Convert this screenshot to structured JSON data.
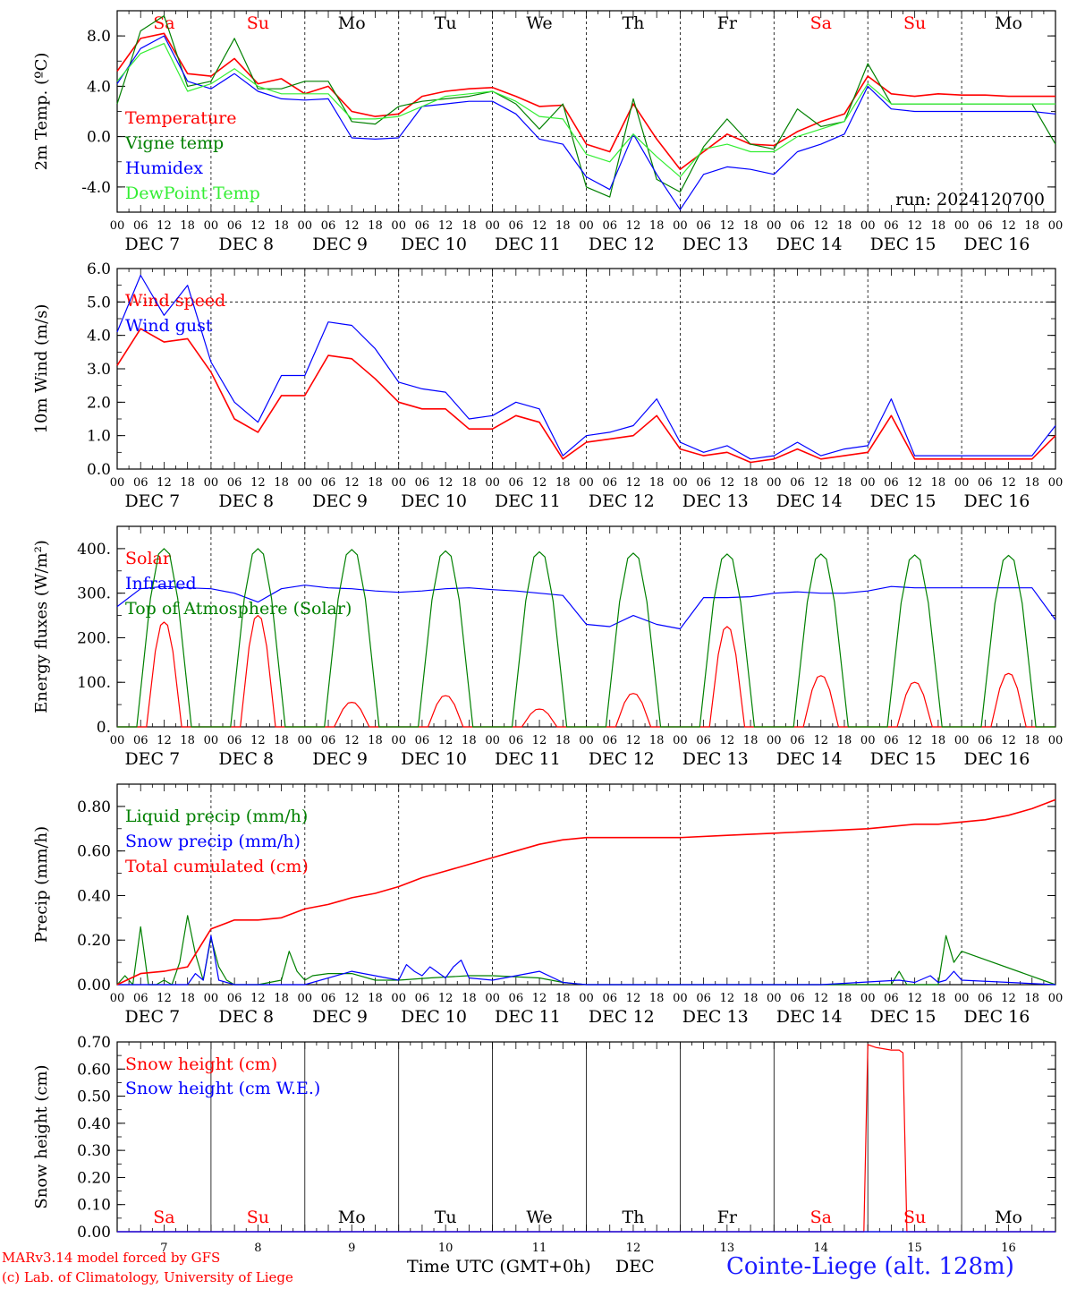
{
  "footer": {
    "model": "MARv3.14 model forced by GFS",
    "copyright": "(c) Lab. of Climatology, University of Liege",
    "time_label": "Time UTC (GMT+0h)",
    "month_label": "DEC",
    "station": "Cointe-Liege (alt. 128m)"
  },
  "colors": {
    "red": "#ff0000",
    "green": "#008000",
    "blue": "#0000ff",
    "lightgreen": "#33ee33",
    "weekend": "#ff0000",
    "weekday": "#000000"
  },
  "days": {
    "weekdays": [
      "Sa",
      "Su",
      "Mo",
      "Tu",
      "We",
      "Th",
      "Fr",
      "Sa",
      "Su",
      "Mo"
    ],
    "weekend": [
      true,
      true,
      false,
      false,
      false,
      false,
      false,
      true,
      true,
      false
    ],
    "dates": [
      "7",
      "8",
      "9",
      "10",
      "11",
      "12",
      "13",
      "14",
      "15",
      "16"
    ],
    "date_labels": [
      "DEC  7",
      "DEC  8",
      "DEC  9",
      "DEC 10",
      "DEC 11",
      "DEC 12",
      "DEC 13",
      "DEC 14",
      "DEC 15",
      "DEC 16"
    ],
    "hour_ticks": [
      "00",
      "06",
      "12",
      "18"
    ],
    "final_tick": "00"
  },
  "chart_data": [
    {
      "type": "line",
      "ylabel": "2m Temp. (ºC)",
      "ylim": [
        -6,
        10
      ],
      "yticks": [
        -4,
        0,
        4,
        8
      ],
      "ytick_labels": [
        "-4.0",
        "0.0",
        "4.0",
        "8.0"
      ],
      "refline": 0,
      "annotation": "run: 2024120700",
      "x_unit": "hours since 00 UTC Dec 7",
      "series": [
        {
          "name": "Temperature",
          "color": "red",
          "x": [
            0,
            6,
            12,
            18,
            24,
            30,
            36,
            42,
            48,
            54,
            60,
            66,
            72,
            78,
            84,
            90,
            96,
            102,
            108,
            114,
            120,
            126,
            132,
            138,
            144,
            150,
            156,
            162,
            168,
            174,
            180,
            186,
            192,
            198,
            204,
            210,
            216,
            222,
            228,
            234,
            240
          ],
          "values": [
            5.2,
            7.8,
            8.2,
            5.0,
            4.8,
            6.2,
            4.2,
            4.6,
            3.4,
            4.0,
            2.0,
            1.6,
            1.8,
            3.2,
            3.6,
            3.8,
            3.9,
            3.2,
            2.4,
            2.5,
            -0.6,
            -1.2,
            2.6,
            -0.2,
            -2.6,
            -1.2,
            0.2,
            -0.6,
            -0.7,
            0.4,
            1.2,
            1.8,
            4.8,
            3.4,
            3.2,
            3.4,
            3.3,
            3.3,
            3.2,
            3.2,
            3.2
          ]
        },
        {
          "name": "Vigne temp",
          "color": "green",
          "x": [
            0,
            6,
            12,
            18,
            24,
            30,
            36,
            42,
            48,
            54,
            60,
            66,
            72,
            78,
            84,
            90,
            96,
            102,
            108,
            114,
            120,
            126,
            132,
            138,
            144,
            150,
            156,
            162,
            168,
            174,
            180,
            186,
            192,
            198,
            204,
            210,
            216,
            222,
            228,
            234,
            240
          ],
          "values": [
            2.6,
            8.4,
            9.6,
            4.0,
            4.4,
            7.8,
            3.8,
            3.8,
            4.4,
            4.4,
            1.2,
            1.0,
            2.4,
            2.8,
            3.0,
            3.2,
            3.6,
            2.6,
            0.6,
            2.6,
            -4.0,
            -4.8,
            3.0,
            -3.4,
            -4.4,
            -0.8,
            1.4,
            -0.6,
            -1.0,
            2.2,
            0.8,
            1.2,
            5.8,
            2.6,
            2.6,
            2.6,
            2.6,
            2.6,
            2.6,
            2.6,
            -0.6
          ]
        },
        {
          "name": "Humidex",
          "color": "blue",
          "x": [
            0,
            6,
            12,
            18,
            24,
            30,
            36,
            42,
            48,
            54,
            60,
            66,
            72,
            78,
            84,
            90,
            96,
            102,
            108,
            114,
            120,
            126,
            132,
            138,
            144,
            150,
            156,
            162,
            168,
            174,
            180,
            186,
            192,
            198,
            204,
            210,
            216,
            222,
            228,
            234,
            240
          ],
          "values": [
            4.2,
            7.0,
            8.0,
            4.4,
            3.8,
            5.0,
            3.6,
            3.0,
            2.9,
            3.0,
            -0.1,
            -0.2,
            -0.1,
            2.4,
            2.6,
            2.8,
            2.8,
            1.8,
            -0.2,
            -0.6,
            -3.2,
            -4.2,
            0.2,
            -3.0,
            -5.8,
            -3.0,
            -2.4,
            -2.6,
            -3.0,
            -1.2,
            -0.6,
            0.2,
            4.0,
            2.2,
            2.0,
            2.0,
            2.0,
            2.0,
            2.0,
            2.0,
            1.8
          ]
        },
        {
          "name": "DewPoint Temp",
          "color": "lightgreen",
          "x": [
            0,
            6,
            12,
            18,
            24,
            30,
            36,
            42,
            48,
            54,
            60,
            66,
            72,
            78,
            84,
            90,
            96,
            102,
            108,
            114,
            120,
            126,
            132,
            138,
            144,
            150,
            156,
            162,
            168,
            174,
            180,
            186,
            192,
            198,
            204,
            210,
            216,
            222,
            228,
            234,
            240
          ],
          "values": [
            4.4,
            6.6,
            7.4,
            3.6,
            4.2,
            5.4,
            4.0,
            3.4,
            3.4,
            3.4,
            1.4,
            1.4,
            1.6,
            2.4,
            3.2,
            3.4,
            3.6,
            2.8,
            1.6,
            1.4,
            -1.4,
            -2.0,
            0.2,
            -1.6,
            -3.2,
            -1.0,
            -0.6,
            -1.2,
            -1.2,
            0.0,
            0.6,
            1.2,
            4.2,
            2.6,
            2.6,
            2.6,
            2.6,
            2.6,
            2.6,
            2.6,
            2.6
          ]
        }
      ]
    },
    {
      "type": "line",
      "ylabel": "10m Wind (m/s)",
      "ylim": [
        0,
        6
      ],
      "yticks": [
        0,
        1,
        2,
        3,
        4,
        5,
        6
      ],
      "ytick_labels": [
        "0.0",
        "1.0",
        "2.0",
        "3.0",
        "4.0",
        "5.0",
        "6.0"
      ],
      "refline": 5,
      "x_unit": "hours since 00 UTC Dec 7",
      "series": [
        {
          "name": "Wind speed",
          "color": "red",
          "x": [
            0,
            6,
            12,
            18,
            24,
            30,
            36,
            42,
            48,
            54,
            60,
            66,
            72,
            78,
            84,
            90,
            96,
            102,
            108,
            114,
            120,
            126,
            132,
            138,
            144,
            150,
            156,
            162,
            168,
            174,
            180,
            186,
            192,
            198,
            204,
            210,
            216,
            222,
            228,
            234,
            240
          ],
          "values": [
            3.1,
            4.2,
            3.8,
            3.9,
            2.9,
            1.5,
            1.1,
            2.2,
            2.2,
            3.4,
            3.3,
            2.7,
            2.0,
            1.8,
            1.8,
            1.2,
            1.2,
            1.6,
            1.4,
            0.3,
            0.8,
            0.9,
            1.0,
            1.6,
            0.6,
            0.4,
            0.5,
            0.2,
            0.3,
            0.6,
            0.3,
            0.4,
            0.5,
            1.6,
            0.3,
            0.3,
            0.3,
            0.3,
            0.3,
            0.3,
            1.0
          ]
        },
        {
          "name": "Wind gust",
          "color": "blue",
          "x": [
            0,
            6,
            12,
            18,
            24,
            30,
            36,
            42,
            48,
            54,
            60,
            66,
            72,
            78,
            84,
            90,
            96,
            102,
            108,
            114,
            120,
            126,
            132,
            138,
            144,
            150,
            156,
            162,
            168,
            174,
            180,
            186,
            192,
            198,
            204,
            210,
            216,
            222,
            228,
            234,
            240
          ],
          "values": [
            4.1,
            5.8,
            4.6,
            5.5,
            3.2,
            2.0,
            1.4,
            2.8,
            2.8,
            4.4,
            4.3,
            3.6,
            2.6,
            2.4,
            2.3,
            1.5,
            1.6,
            2.0,
            1.8,
            0.4,
            1.0,
            1.1,
            1.3,
            2.1,
            0.8,
            0.5,
            0.7,
            0.3,
            0.4,
            0.8,
            0.4,
            0.6,
            0.7,
            2.1,
            0.4,
            0.4,
            0.4,
            0.4,
            0.4,
            0.4,
            1.3
          ]
        }
      ]
    },
    {
      "type": "line",
      "ylabel": "Energy fluxes (W/m²)",
      "ylim": [
        0,
        450
      ],
      "yticks": [
        0,
        100,
        200,
        300,
        400
      ],
      "ytick_labels": [
        "0.",
        "100.",
        "200.",
        "300.",
        "400."
      ],
      "x_unit": "hours since 00 UTC Dec 7",
      "series": [
        {
          "name": "Solar",
          "color": "red",
          "peak_hours": [
            12,
            36,
            60,
            84,
            108,
            132,
            156,
            180,
            204,
            228
          ],
          "peak_values": [
            235,
            250,
            55,
            70,
            40,
            75,
            225,
            115,
            100,
            120
          ]
        },
        {
          "name": "Infrared",
          "color": "blue",
          "x": [
            0,
            6,
            12,
            18,
            24,
            30,
            36,
            42,
            48,
            54,
            60,
            66,
            72,
            78,
            84,
            90,
            96,
            102,
            108,
            114,
            120,
            126,
            132,
            138,
            144,
            150,
            156,
            162,
            168,
            174,
            180,
            186,
            192,
            198,
            204,
            210,
            216,
            222,
            228,
            234,
            240
          ],
          "values": [
            270,
            310,
            315,
            312,
            310,
            300,
            280,
            310,
            318,
            312,
            310,
            305,
            302,
            305,
            310,
            312,
            308,
            305,
            300,
            295,
            230,
            225,
            250,
            230,
            220,
            290,
            290,
            292,
            300,
            303,
            300,
            300,
            305,
            315,
            312,
            312,
            312,
            312,
            312,
            312,
            240
          ]
        },
        {
          "name": "Top of Atmosphere (Solar)",
          "color": "green",
          "peak_hours": [
            12,
            36,
            60,
            84,
            108,
            132,
            156,
            180,
            204,
            228
          ],
          "peak_values": [
            400,
            400,
            398,
            395,
            393,
            390,
            388,
            388,
            386,
            385
          ]
        }
      ]
    },
    {
      "type": "line",
      "ylabel": "Precip (mm/h)",
      "ylim": [
        0,
        0.9
      ],
      "yticks": [
        0,
        0.2,
        0.4,
        0.6,
        0.8
      ],
      "ytick_labels": [
        "0.00",
        "0.20",
        "0.40",
        "0.60",
        "0.80"
      ],
      "x_unit": "hours since 00 UTC Dec 7",
      "series": [
        {
          "name": "Liquid precip (mm/h)",
          "color": "green",
          "x": [
            0,
            2,
            4,
            6,
            8,
            10,
            12,
            14,
            16,
            18,
            20,
            22,
            24,
            26,
            28,
            30,
            36,
            42,
            44,
            46,
            48,
            50,
            54,
            60,
            66,
            72,
            80,
            90,
            96,
            108,
            114,
            120,
            150,
            168,
            180,
            186,
            192,
            198,
            200,
            202,
            204,
            206,
            208,
            210,
            212,
            214,
            216,
            240
          ],
          "values": [
            0,
            0.04,
            0,
            0.26,
            0,
            0,
            0.02,
            0,
            0.1,
            0.31,
            0.14,
            0.02,
            0.21,
            0.08,
            0.02,
            0,
            0,
            0.02,
            0.15,
            0.06,
            0.02,
            0.04,
            0.05,
            0.05,
            0.02,
            0.02,
            0.03,
            0.04,
            0.04,
            0.03,
            0.01,
            0,
            0,
            0,
            0,
            0,
            0,
            0,
            0.06,
            0,
            0,
            0,
            0,
            0,
            0.22,
            0.1,
            0.15,
            0
          ]
        },
        {
          "name": "Snow precip (mm/h)",
          "color": "blue",
          "x": [
            0,
            18,
            20,
            22,
            24,
            26,
            30,
            48,
            60,
            72,
            74,
            76,
            78,
            80,
            84,
            86,
            88,
            90,
            96,
            108,
            114,
            120,
            150,
            180,
            200,
            204,
            208,
            210,
            212,
            214,
            216,
            240
          ],
          "values": [
            0,
            0,
            0.05,
            0.02,
            0.22,
            0.02,
            0,
            0,
            0.06,
            0.02,
            0.09,
            0.06,
            0.04,
            0.08,
            0.03,
            0.08,
            0.11,
            0.03,
            0.02,
            0.06,
            0.01,
            0,
            0,
            0,
            0.02,
            0.01,
            0.04,
            0.01,
            0.02,
            0.06,
            0.02,
            0
          ]
        },
        {
          "name": "Total cumulated (cm)",
          "color": "red",
          "x": [
            0,
            6,
            12,
            18,
            24,
            30,
            36,
            42,
            48,
            54,
            60,
            66,
            72,
            78,
            84,
            90,
            96,
            102,
            108,
            114,
            120,
            132,
            144,
            156,
            168,
            180,
            192,
            198,
            204,
            210,
            216,
            222,
            228,
            234,
            240
          ],
          "values": [
            0,
            0.05,
            0.06,
            0.08,
            0.25,
            0.29,
            0.29,
            0.3,
            0.34,
            0.36,
            0.39,
            0.41,
            0.44,
            0.48,
            0.51,
            0.54,
            0.57,
            0.6,
            0.63,
            0.65,
            0.66,
            0.66,
            0.66,
            0.67,
            0.68,
            0.69,
            0.7,
            0.71,
            0.72,
            0.72,
            0.73,
            0.74,
            0.76,
            0.79,
            0.83
          ]
        }
      ]
    },
    {
      "type": "line",
      "ylabel": "Snow height (cm)",
      "ylim": [
        0,
        0.7
      ],
      "yticks": [
        0,
        0.1,
        0.2,
        0.3,
        0.4,
        0.5,
        0.6,
        0.7
      ],
      "ytick_labels": [
        "0.00",
        "0.10",
        "0.20",
        "0.30",
        "0.40",
        "0.50",
        "0.60",
        "0.70"
      ],
      "x_unit": "hours since 00 UTC Dec 7",
      "series": [
        {
          "name": "Snow height (cm)",
          "color": "red",
          "x": [
            0,
            191,
            192,
            194,
            198,
            200,
            201,
            202,
            240
          ],
          "values": [
            0,
            0,
            0.69,
            0.68,
            0.67,
            0.67,
            0.66,
            0,
            0
          ]
        },
        {
          "name": "Snow height (cm W.E.)",
          "color": "blue",
          "x": [
            0,
            240
          ],
          "values": [
            0,
            0
          ]
        }
      ]
    }
  ]
}
